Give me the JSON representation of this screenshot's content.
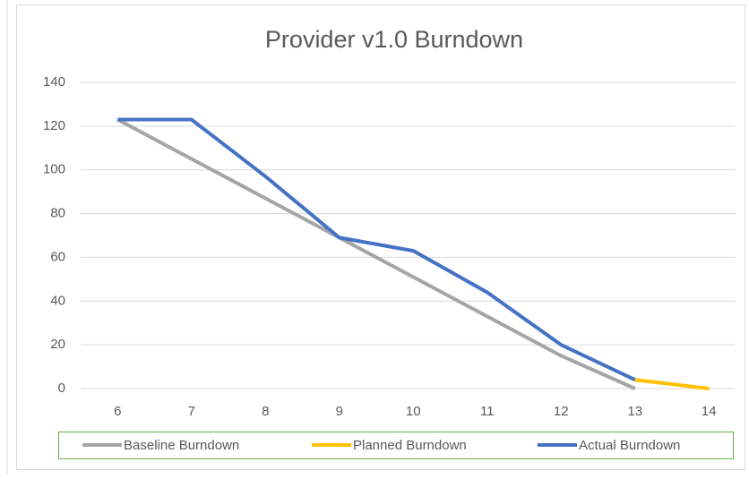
{
  "chart_data": {
    "type": "line",
    "title": "Provider v1.0 Burndown",
    "categories": [
      "6",
      "7",
      "8",
      "9",
      "10",
      "11",
      "12",
      "13",
      "14"
    ],
    "series": [
      {
        "name": "Baseline Burndown",
        "color": "#a5a5a5",
        "values": [
          123,
          105,
          87,
          69,
          51,
          33,
          15,
          0,
          null
        ]
      },
      {
        "name": "Planned Burndown",
        "color": "#ffc000",
        "values": [
          null,
          null,
          null,
          null,
          null,
          null,
          null,
          4,
          0
        ]
      },
      {
        "name": "Actual Burndown",
        "color": "#4472c4",
        "values": [
          123,
          123,
          97,
          69,
          63,
          44,
          20,
          4,
          null
        ]
      }
    ],
    "ylim": [
      0,
      140
    ],
    "yticks": [
      0,
      20,
      40,
      60,
      80,
      100,
      120,
      140
    ],
    "grid": true,
    "legend": "bottom"
  }
}
